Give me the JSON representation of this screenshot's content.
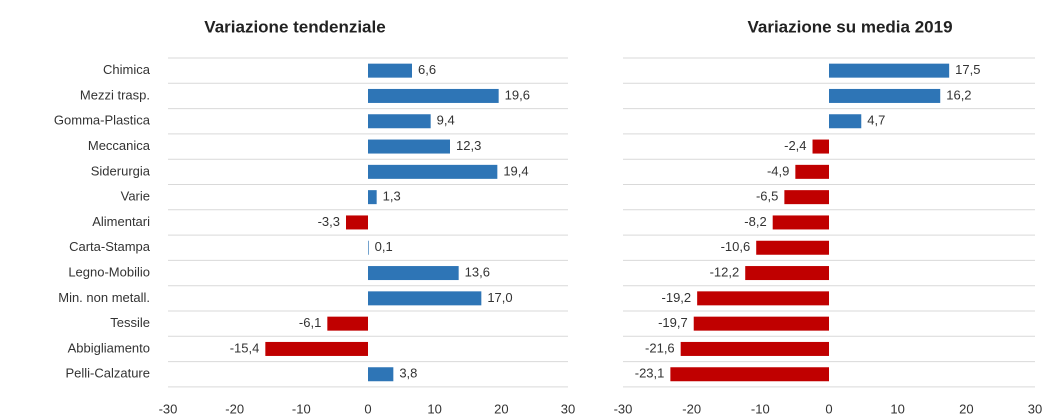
{
  "chart_data": [
    {
      "type": "bar",
      "orientation": "horizontal",
      "title": "Variazione tendenziale",
      "categories": [
        "Chimica",
        "Mezzi trasp.",
        "Gomma-Plastica",
        "Meccanica",
        "Siderurgia",
        "Varie",
        "Alimentari",
        "Carta-Stampa",
        "Legno-Mobilio",
        "Min. non metall.",
        "Tessile",
        "Abbigliamento",
        "Pelli-Calzature"
      ],
      "values": [
        6.6,
        19.6,
        9.4,
        12.3,
        19.4,
        1.3,
        -3.3,
        0.1,
        13.6,
        17.0,
        -6.1,
        -15.4,
        3.8
      ],
      "value_labels": [
        "6,6",
        "19,6",
        "9,4",
        "12,3",
        "19,4",
        "1,3",
        "-3,3",
        "0,1",
        "13,6",
        "17,0",
        "-6,1",
        "-15,4",
        "3,8"
      ],
      "color": "#2e75b6",
      "negative_color": "#c00000",
      "xlim": [
        -30,
        30
      ],
      "xticks": [
        -30,
        -20,
        -10,
        0,
        10,
        20,
        30
      ],
      "grid": true
    },
    {
      "type": "bar",
      "orientation": "horizontal",
      "title": "Variazione su media 2019",
      "values": [
        17.5,
        16.2,
        4.7,
        -2.4,
        -4.9,
        -6.5,
        -8.2,
        -10.6,
        -12.2,
        -19.2,
        -19.7,
        -21.6,
        -23.1
      ],
      "value_labels": [
        "17,5",
        "16,2",
        "4,7",
        "-2,4",
        "-4,9",
        "-6,5",
        "-8,2",
        "-10,6",
        "-12,2",
        "-19,2",
        "-19,7",
        "-21,6",
        "-23,1"
      ],
      "color": "#2e75b6",
      "negative_color": "#c00000",
      "xlim": [
        -30,
        30
      ],
      "xticks": [
        -30,
        -20,
        -10,
        0,
        10,
        20,
        30
      ],
      "grid": true
    }
  ]
}
